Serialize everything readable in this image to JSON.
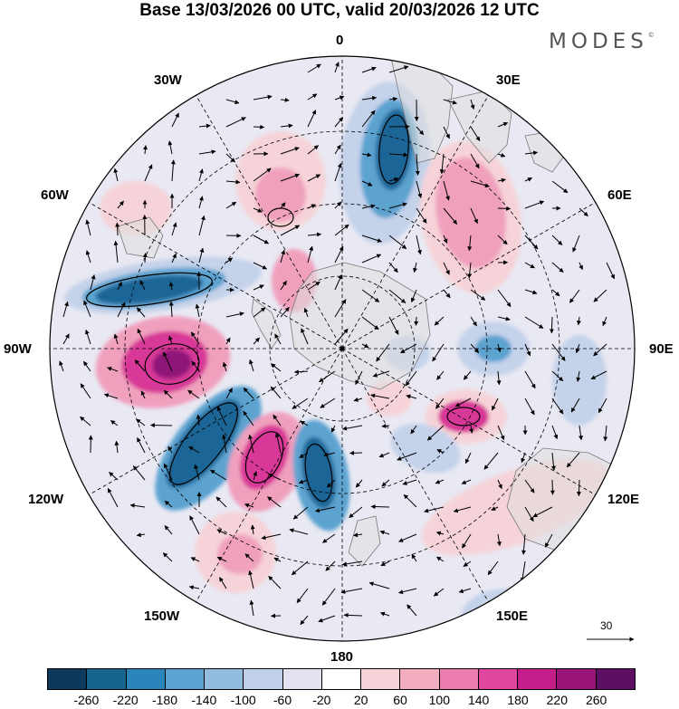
{
  "header": {
    "title": "Base 13/03/2026 00 UTC, valid 20/03/2026 12 UTC",
    "brand": "MODES",
    "brand_mark": "©"
  },
  "map": {
    "projection": "south-polar-stereographic",
    "meridian_labels": {
      "m0": "0",
      "m30e": "30E",
      "m60e": "60E",
      "m90e": "90E",
      "m120e": "120E",
      "m150e": "150E",
      "m180": "180",
      "m150w": "150W",
      "m120w": "120W",
      "m90w": "90W",
      "m60w": "60W",
      "m30w": "30W"
    },
    "reference_vector_label": "30"
  },
  "legend": {
    "tick_labels": [
      "-260",
      "-220",
      "-180",
      "-140",
      "-100",
      "-60",
      "-20",
      "20",
      "60",
      "100",
      "140",
      "180",
      "220",
      "260"
    ],
    "colors": [
      "#0d3a5c",
      "#17648f",
      "#2b85ba",
      "#5ba3d0",
      "#93bde0",
      "#bfd0e8",
      "#e2e2f0",
      "#ffffff",
      "#f6d3d8",
      "#f4aec0",
      "#ec7db0",
      "#e0469f",
      "#c41e8a",
      "#981478",
      "#5c0d64"
    ]
  },
  "palette": {
    "neg_strong": "#1a6697",
    "neg_mid": "#5ba3d0",
    "neg_light": "#c4d2ea",
    "pos_light": "#f6d3d8",
    "pos_mid": "#f0a0bd",
    "pos_strong": "#d83897",
    "pos_darkest": "#8e1478",
    "land": "#dedede",
    "coast": "#7a7a7a"
  }
}
